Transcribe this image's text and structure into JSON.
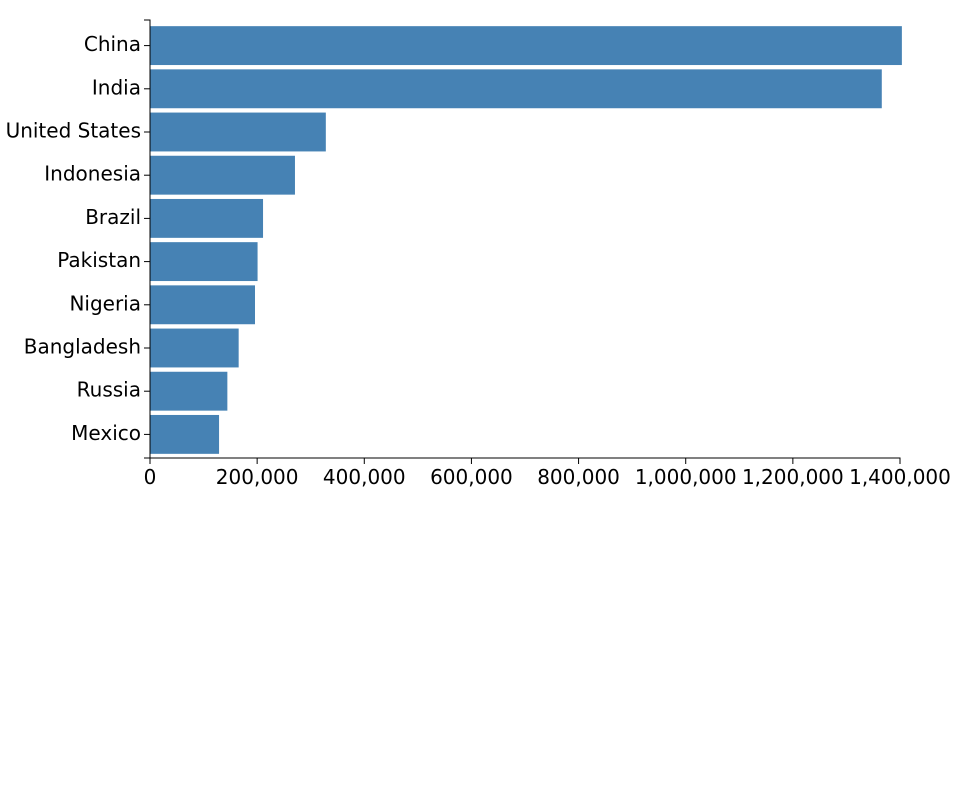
{
  "chart_data": {
    "type": "bar",
    "orientation": "horizontal",
    "title": "",
    "xlabel": "",
    "ylabel": "",
    "categories": [
      "China",
      "India",
      "United States",
      "Indonesia",
      "Brazil",
      "Pakistan",
      "Nigeria",
      "Bangladesh",
      "Russia",
      "Mexico"
    ],
    "values": [
      1403500,
      1366000,
      328200,
      270600,
      211000,
      200800,
      196000,
      165500,
      144400,
      128900
    ],
    "xlim": [
      0,
      1400000
    ],
    "xticks": [
      0,
      200000,
      400000,
      600000,
      800000,
      1000000,
      1200000,
      1400000
    ],
    "xtick_labels": [
      "0",
      "200,000",
      "400,000",
      "600,000",
      "800,000",
      "1,000,000",
      "1,200,000",
      "1,400,000"
    ],
    "bar_color": "#4682b4",
    "grid": false,
    "legend": "none"
  }
}
